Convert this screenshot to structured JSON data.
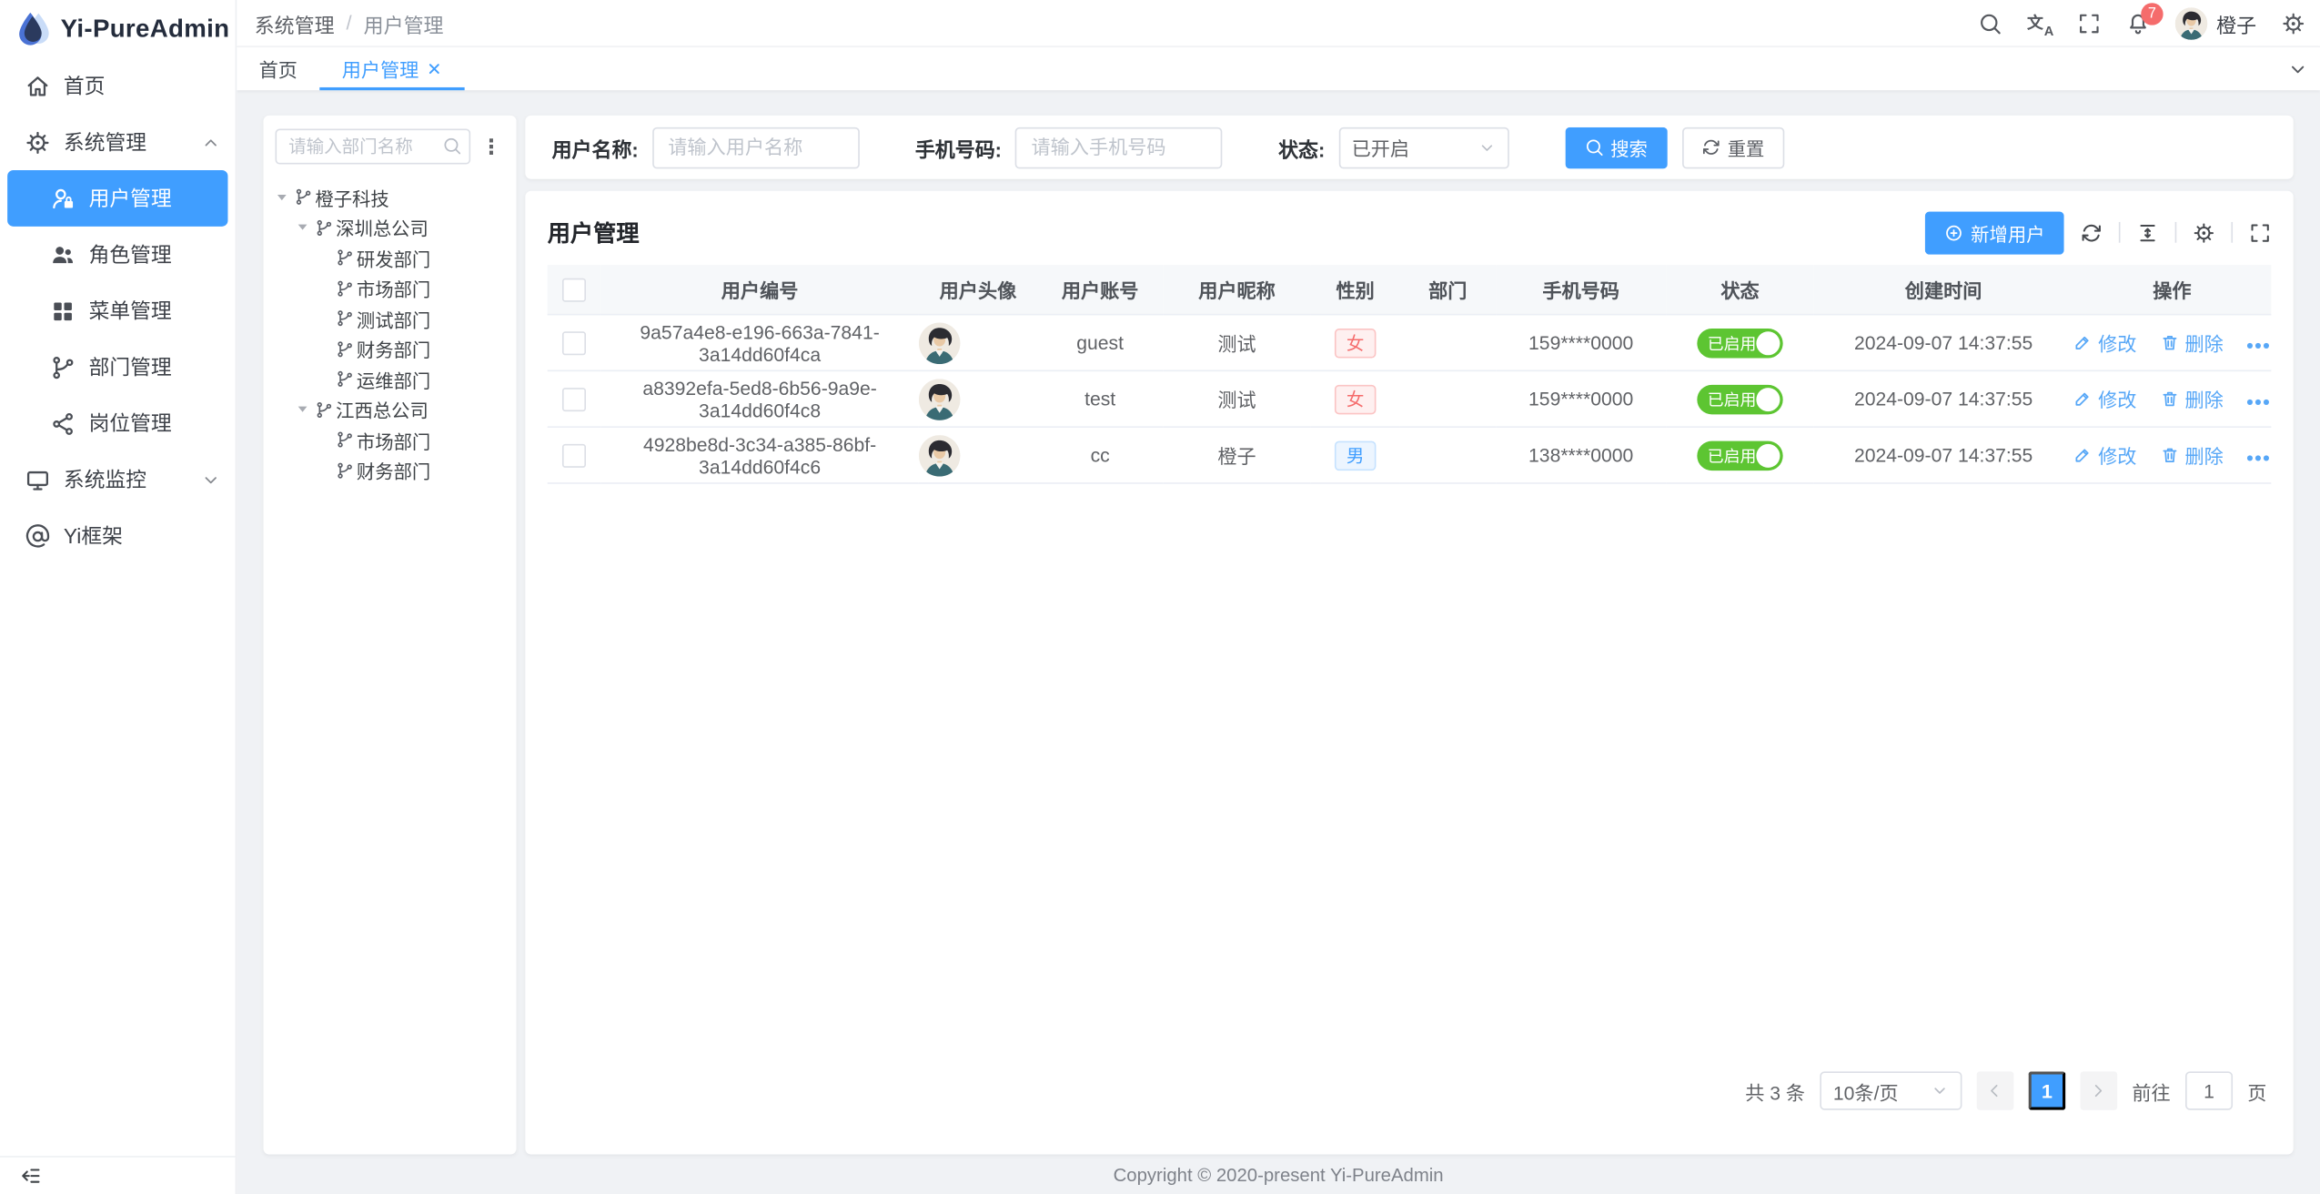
{
  "app_title": "Yi-PureAdmin",
  "colors": {
    "primary": "#409eff",
    "switch_on": "#5dc532",
    "tag_female": "#f56c6c",
    "tag_male": "#409eff",
    "badge": "#f56c6c"
  },
  "sidebar": {
    "menu": [
      {
        "label": "首页",
        "icon": "home-icon",
        "kind": "top"
      },
      {
        "label": "系统管理",
        "icon": "gear-icon",
        "kind": "group",
        "state": "expanded"
      },
      {
        "label": "用户管理",
        "icon": "user-lock-icon",
        "kind": "sub",
        "active": true
      },
      {
        "label": "角色管理",
        "icon": "roles-icon",
        "kind": "sub"
      },
      {
        "label": "菜单管理",
        "icon": "menu-grid-icon",
        "kind": "sub"
      },
      {
        "label": "部门管理",
        "icon": "department-icon",
        "kind": "sub"
      },
      {
        "label": "岗位管理",
        "icon": "post-icon",
        "kind": "sub"
      },
      {
        "label": "系统监控",
        "icon": "monitor-icon",
        "kind": "group",
        "state": "collapsed"
      },
      {
        "label": "Yi框架",
        "icon": "at-icon",
        "kind": "top"
      }
    ]
  },
  "header": {
    "breadcrumb": {
      "parent": "系统管理",
      "separator": "/",
      "current": "用户管理"
    },
    "notification_count": "7",
    "user_name": "橙子"
  },
  "tabs": [
    {
      "label": "首页",
      "active": false
    },
    {
      "label": "用户管理",
      "active": true,
      "closable": true
    }
  ],
  "tree_panel": {
    "search_placeholder": "请输入部门名称",
    "nodes": [
      {
        "label": "橙子科技",
        "level": 0,
        "expanded": true
      },
      {
        "label": "深圳总公司",
        "level": 1,
        "expanded": true
      },
      {
        "label": "研发部门",
        "level": 2
      },
      {
        "label": "市场部门",
        "level": 2
      },
      {
        "label": "测试部门",
        "level": 2
      },
      {
        "label": "财务部门",
        "level": 2
      },
      {
        "label": "运维部门",
        "level": 2
      },
      {
        "label": "江西总公司",
        "level": 1,
        "expanded": true
      },
      {
        "label": "市场部门",
        "level": 2
      },
      {
        "label": "财务部门",
        "level": 2
      }
    ]
  },
  "filter": {
    "username_label": "用户名称:",
    "username_placeholder": "请输入用户名称",
    "phone_label": "手机号码:",
    "phone_placeholder": "请输入手机号码",
    "status_label": "状态:",
    "status_value": "已开启",
    "search_button": "搜索",
    "reset_button": "重置"
  },
  "table": {
    "title": "用户管理",
    "add_button": "新增用户",
    "columns": [
      "用户编号",
      "用户头像",
      "用户账号",
      "用户昵称",
      "性别",
      "部门",
      "手机号码",
      "状态",
      "创建时间",
      "操作"
    ],
    "rows": [
      {
        "id": "9a57a4e8-e196-663a-7841-3a14dd60f4ca",
        "account": "guest",
        "nickname": "测试",
        "gender": "女",
        "department": "",
        "phone": "159****0000",
        "status": "已启用",
        "created": "2024-09-07 14:37:55"
      },
      {
        "id": "a8392efa-5ed8-6b56-9a9e-3a14dd60f4c8",
        "account": "test",
        "nickname": "测试",
        "gender": "女",
        "department": "",
        "phone": "159****0000",
        "status": "已启用",
        "created": "2024-09-07 14:37:55"
      },
      {
        "id": "4928be8d-3c34-a385-86bf-3a14dd60f4c6",
        "account": "cc",
        "nickname": "橙子",
        "gender": "男",
        "department": "",
        "phone": "138****0000",
        "status": "已启用",
        "created": "2024-09-07 14:37:55"
      }
    ],
    "actions": {
      "edit": "修改",
      "delete": "删除",
      "more": "•••"
    }
  },
  "pagination": {
    "total": "共 3 条",
    "page_size": "10条/页",
    "current": "1",
    "goto_label": "前往",
    "goto_value": "1",
    "unit_label": "页"
  },
  "footer": {
    "copyright": "Copyright © 2020-present Yi-PureAdmin"
  }
}
